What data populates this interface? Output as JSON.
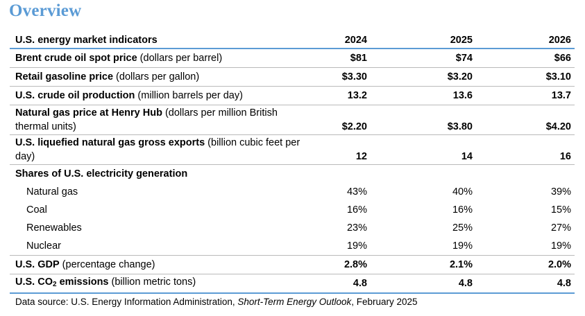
{
  "title": "Overview",
  "header": {
    "label": "U.S. energy market indicators",
    "years": [
      "2024",
      "2025",
      "2026"
    ]
  },
  "rows": [
    {
      "label_bold": "Brent crude oil spot price",
      "label_unit": " (dollars per barrel)",
      "values": [
        "$81",
        "$74",
        "$66"
      ]
    },
    {
      "label_bold": "Retail gasoline price",
      "label_unit": " (dollars per gallon)",
      "values": [
        "$3.30",
        "$3.20",
        "$3.10"
      ]
    },
    {
      "label_bold": "U.S. crude oil production",
      "label_unit": " (million barrels per day)",
      "values": [
        "13.2",
        "13.6",
        "13.7"
      ]
    },
    {
      "label_bold": "Natural gas price at Henry Hub",
      "label_unit": " (dollars per million British thermal units)",
      "values": [
        "$2.20",
        "$3.80",
        "$4.20"
      ]
    },
    {
      "label_bold": "U.S. liquefied natural gas gross exports",
      "label_unit": " (billion cubic feet per day)",
      "values": [
        "12",
        "14",
        "16"
      ]
    }
  ],
  "electricity": {
    "heading": "Shares of U.S. electricity generation",
    "items": [
      {
        "label": "Natural gas",
        "values": [
          "43%",
          "40%",
          "39%"
        ]
      },
      {
        "label": "Coal",
        "values": [
          "16%",
          "16%",
          "15%"
        ]
      },
      {
        "label": "Renewables",
        "values": [
          "23%",
          "25%",
          "27%"
        ]
      },
      {
        "label": "Nuclear",
        "values": [
          "19%",
          "19%",
          "19%"
        ]
      }
    ]
  },
  "gdp": {
    "label_bold": "U.S. GDP",
    "label_unit": " (percentage change)",
    "values": [
      "2.8%",
      "2.1%",
      "2.0%"
    ]
  },
  "co2": {
    "label_bold_pre": "U.S. CO",
    "label_sub": "2",
    "label_bold_post": " emissions",
    "label_unit": " (billion metric tons)",
    "values": [
      "4.8",
      "4.8",
      "4.8"
    ]
  },
  "source": {
    "prefix": "Data source: U.S. Energy Information Administration, ",
    "italic": "Short-Term Energy Outlook",
    "suffix": ", February 2025"
  },
  "colors": {
    "accent": "#5b9bd5",
    "rule": "#b9b9b9"
  }
}
